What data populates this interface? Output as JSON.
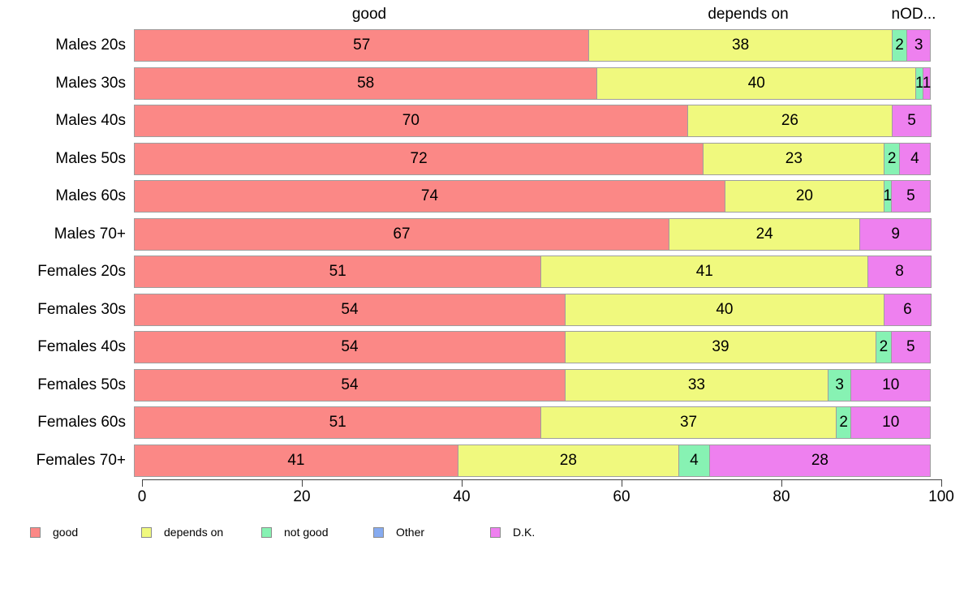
{
  "chart_data": {
    "type": "bar",
    "orientation": "horizontal",
    "stacked": true,
    "title": "",
    "xlabel": "",
    "ylabel": "",
    "xlim": [
      0,
      100
    ],
    "x_ticks": [
      0,
      20,
      40,
      60,
      80,
      100
    ],
    "grid": false,
    "legend_position": "bottom",
    "value_labels_shown": true,
    "categories": [
      "Males 20s",
      "Males 30s",
      "Males 40s",
      "Males 50s",
      "Males 60s",
      "Males 70+",
      "Females 20s",
      "Females 30s",
      "Females 40s",
      "Females 50s",
      "Females 60s",
      "Females 70+"
    ],
    "series": [
      {
        "name": "good",
        "color": "#FB8886",
        "values": [
          57,
          58,
          70,
          72,
          74,
          67,
          51,
          54,
          54,
          54,
          51,
          41
        ]
      },
      {
        "name": "depends on",
        "color": "#F0F97E",
        "values": [
          38,
          40,
          26,
          23,
          20,
          24,
          41,
          40,
          39,
          33,
          37,
          28
        ]
      },
      {
        "name": "not good",
        "color": "#87F2B3",
        "values": [
          2,
          1,
          0,
          2,
          1,
          0,
          0,
          0,
          2,
          3,
          2,
          4
        ]
      },
      {
        "name": "Other",
        "color": "#86ABF0",
        "values": [
          0,
          0,
          0,
          0,
          0,
          0,
          0,
          0,
          0,
          0,
          0,
          0
        ]
      },
      {
        "name": "D.K.",
        "color": "#EE80EF",
        "values": [
          3,
          1,
          5,
          4,
          5,
          9,
          8,
          6,
          5,
          10,
          10,
          28
        ]
      }
    ]
  },
  "top_labels": [
    {
      "text": "good"
    },
    {
      "text": "depends on"
    },
    {
      "text": "nOD..."
    }
  ],
  "legend": {
    "labels": [
      "good",
      "depends on",
      "not good",
      "Other",
      "D.K."
    ]
  },
  "colors": {
    "bar_border": "#9e9e9e",
    "axis": "#444444",
    "text": "#000000",
    "background": "#ffffff"
  }
}
